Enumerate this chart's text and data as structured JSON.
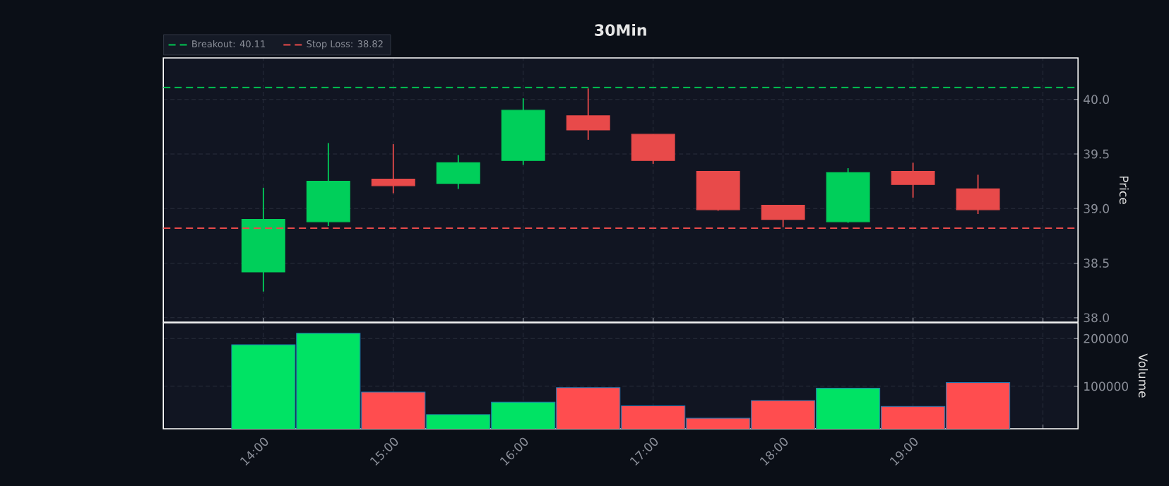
{
  "chart_data": [
    {
      "type": "candlestick",
      "title": "30Min",
      "ylabel": "Price",
      "x": [
        14,
        14.5,
        15,
        15.5,
        16,
        16.5,
        17,
        17.5,
        18,
        18.5,
        19,
        19.5
      ],
      "ohlc": [
        [
          38.42,
          39.19,
          38.24,
          38.9
        ],
        [
          38.88,
          39.6,
          38.84,
          39.25
        ],
        [
          39.27,
          39.59,
          39.14,
          39.21
        ],
        [
          39.23,
          39.49,
          39.18,
          39.42
        ],
        [
          39.44,
          40.01,
          39.4,
          39.9
        ],
        [
          39.85,
          40.1,
          39.63,
          39.72
        ],
        [
          39.68,
          39.68,
          39.41,
          39.44
        ],
        [
          39.34,
          39.34,
          38.98,
          38.99
        ],
        [
          39.03,
          39.03,
          38.83,
          38.9
        ],
        [
          38.88,
          39.37,
          38.87,
          39.33
        ],
        [
          39.34,
          39.42,
          39.1,
          39.22
        ],
        [
          39.18,
          39.31,
          38.95,
          38.99
        ]
      ],
      "colors": [
        "#00cf5a",
        "#00cf5a",
        "#e84a4a",
        "#00cf5a",
        "#00cf5a",
        "#e84a4a",
        "#e84a4a",
        "#e84a4a",
        "#e84a4a",
        "#00cf5a",
        "#e84a4a",
        "#e84a4a"
      ],
      "xlim": [
        13.23,
        20.27
      ],
      "ylim": [
        37.96,
        40.38
      ],
      "xticks": [
        14,
        15,
        16,
        17,
        18,
        19,
        20
      ],
      "yticks": [
        {
          "value": 38,
          "label": "38.0"
        },
        {
          "value": 38.5,
          "label": "38.5"
        },
        {
          "value": 39,
          "label": "39.0"
        },
        {
          "value": 39.5,
          "label": "39.5"
        },
        {
          "value": 40,
          "label": "40.0"
        }
      ],
      "ref_lines": [
        {
          "axis": "y",
          "value": 40.11,
          "label": "Breakout: 40.11",
          "color": "#00c853",
          "line_style": "dashed"
        },
        {
          "axis": "y",
          "value": 38.82,
          "label": "Stop Loss: 38.82",
          "color": "#e84a4a",
          "line_style": "dashed"
        }
      ],
      "legend": "top left",
      "grid": true,
      "tick_labels": "y"
    },
    {
      "type": "bar",
      "ylabel": "Volume",
      "x": [
        14,
        14.5,
        15,
        15.5,
        16,
        16.5,
        17,
        17.5,
        18,
        18.5,
        19,
        19.5
      ],
      "values": [
        187000,
        211000,
        88000,
        41000,
        67000,
        97000,
        59000,
        33000,
        70000,
        96000,
        58000,
        108000
      ],
      "colors": [
        "#00e364",
        "#00e364",
        "#ff4d4f",
        "#00e364",
        "#00e364",
        "#ff4d4f",
        "#ff4d4f",
        "#ff4d4f",
        "#ff4d4f",
        "#00e364",
        "#ff4d4f",
        "#ff4d4f"
      ],
      "xlim": [
        13.23,
        20.27
      ],
      "ylim": [
        11000,
        233000
      ],
      "xticks": [
        {
          "value": 14,
          "label": "14:00"
        },
        {
          "value": 15,
          "label": "15:00"
        },
        {
          "value": 16,
          "label": "16:00"
        },
        {
          "value": 17,
          "label": "17:00"
        },
        {
          "value": 18,
          "label": "18:00"
        },
        {
          "value": 19,
          "label": "19:00"
        },
        {
          "value": 20,
          "label": null
        }
      ],
      "yticks": [
        100000,
        200000
      ],
      "grid": true
    }
  ]
}
